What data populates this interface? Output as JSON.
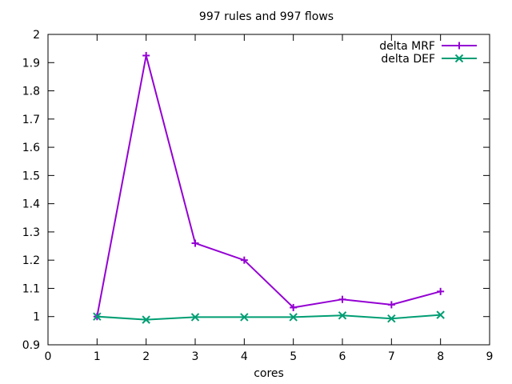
{
  "chart_data": {
    "type": "line",
    "title": "997 rules and 997 flows",
    "xlabel": "cores",
    "ylabel": "",
    "xlim": [
      0,
      9
    ],
    "ylim": [
      0.9,
      2.0
    ],
    "x_ticks": [
      "0",
      "1",
      "2",
      "3",
      "4",
      "5",
      "6",
      "7",
      "8",
      "9"
    ],
    "y_ticks": [
      "0.9",
      "1",
      "1.1",
      "1.2",
      "1.3",
      "1.4",
      "1.5",
      "1.6",
      "1.7",
      "1.8",
      "1.9",
      "2"
    ],
    "x_tick_values": [
      0,
      1,
      2,
      3,
      4,
      5,
      6,
      7,
      8,
      9
    ],
    "y_tick_values": [
      0.9,
      1.0,
      1.1,
      1.2,
      1.3,
      1.4,
      1.5,
      1.6,
      1.7,
      1.8,
      1.9,
      2.0
    ],
    "grid": false,
    "legend_position": "top-right",
    "x": [
      1,
      2,
      3,
      4,
      5,
      6,
      7,
      8
    ],
    "series": [
      {
        "name": "delta MRF",
        "color": "#9400D3",
        "marker": "plus",
        "values": [
          1.0,
          1.925,
          1.26,
          1.2,
          1.032,
          1.061,
          1.042,
          1.089
        ]
      },
      {
        "name": "delta DEF",
        "color": "#009E73",
        "marker": "cross",
        "values": [
          1.0,
          0.989,
          0.998,
          0.998,
          0.998,
          1.004,
          0.993,
          1.006
        ]
      }
    ]
  }
}
